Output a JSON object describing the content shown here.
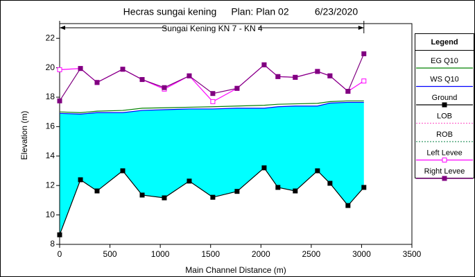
{
  "chart_data": {
    "type": "profile",
    "title": "Hecras sungai kening",
    "plan": "Plan: Plan 02",
    "date": "6/23/2020",
    "subtitle": "Sungai Kening KN 7 - KN 4",
    "x_label": "Main Channel Distance (m)",
    "y_label": "Elevation (m)",
    "legend_title": "Legend",
    "x": [
      0,
      207,
      372,
      627,
      820,
      1040,
      1288,
      1522,
      1763,
      2032,
      2169,
      2341,
      2562,
      2686,
      2865,
      3023
    ],
    "series": [
      {
        "name": "EG  Q10",
        "color": "#008000",
        "style": "line",
        "values": [
          17.0,
          16.95,
          17.05,
          17.1,
          17.25,
          17.28,
          17.32,
          17.35,
          17.4,
          17.45,
          17.52,
          17.55,
          17.58,
          17.7,
          17.75,
          17.75
        ]
      },
      {
        "name": "WS  Q10",
        "color": "#0000ff",
        "style": "ws",
        "values": [
          16.9,
          16.85,
          16.95,
          16.95,
          17.1,
          17.15,
          17.2,
          17.2,
          17.25,
          17.25,
          17.35,
          17.4,
          17.4,
          17.6,
          17.65,
          17.65
        ]
      },
      {
        "name": "Ground",
        "color": "#000000",
        "style": "ground",
        "values": [
          8.65,
          12.39,
          11.63,
          13.0,
          11.35,
          11.16,
          12.3,
          11.2,
          11.6,
          13.2,
          11.87,
          11.63,
          13.0,
          12.15,
          10.64,
          11.87
        ]
      },
      {
        "name": "LOB",
        "color": "#ff66cc",
        "style": "dot",
        "values": [
          null,
          null,
          null,
          null,
          null,
          null,
          null,
          null,
          null,
          null,
          null,
          null,
          null,
          null,
          null,
          null
        ]
      },
      {
        "name": "ROB",
        "color": "#339966",
        "style": "dot",
        "values": [
          null,
          null,
          null,
          null,
          null,
          null,
          null,
          null,
          null,
          null,
          null,
          null,
          null,
          null,
          null,
          null
        ]
      },
      {
        "name": "Left Levee",
        "color": "#ff00ff",
        "style": "open",
        "values": [
          19.87,
          19.95,
          19.0,
          19.9,
          19.2,
          18.55,
          19.45,
          17.7,
          18.6,
          20.2,
          19.4,
          19.35,
          19.75,
          19.45,
          18.4,
          19.1
        ]
      },
      {
        "name": "Right Levee",
        "color": "#800080",
        "style": "filled",
        "values": [
          17.75,
          19.95,
          19.0,
          19.9,
          19.2,
          18.65,
          19.45,
          18.25,
          18.6,
          20.2,
          19.4,
          19.35,
          19.75,
          19.45,
          18.4,
          20.95
        ]
      }
    ],
    "fill_color": "#00ffff",
    "xlim": [
      0,
      3500
    ],
    "ylim": [
      8,
      23
    ],
    "xticks": [
      0,
      500,
      1000,
      1500,
      2000,
      2500,
      3000,
      3500
    ],
    "yticks": [
      8,
      10,
      12,
      14,
      16,
      18,
      20,
      22
    ]
  }
}
